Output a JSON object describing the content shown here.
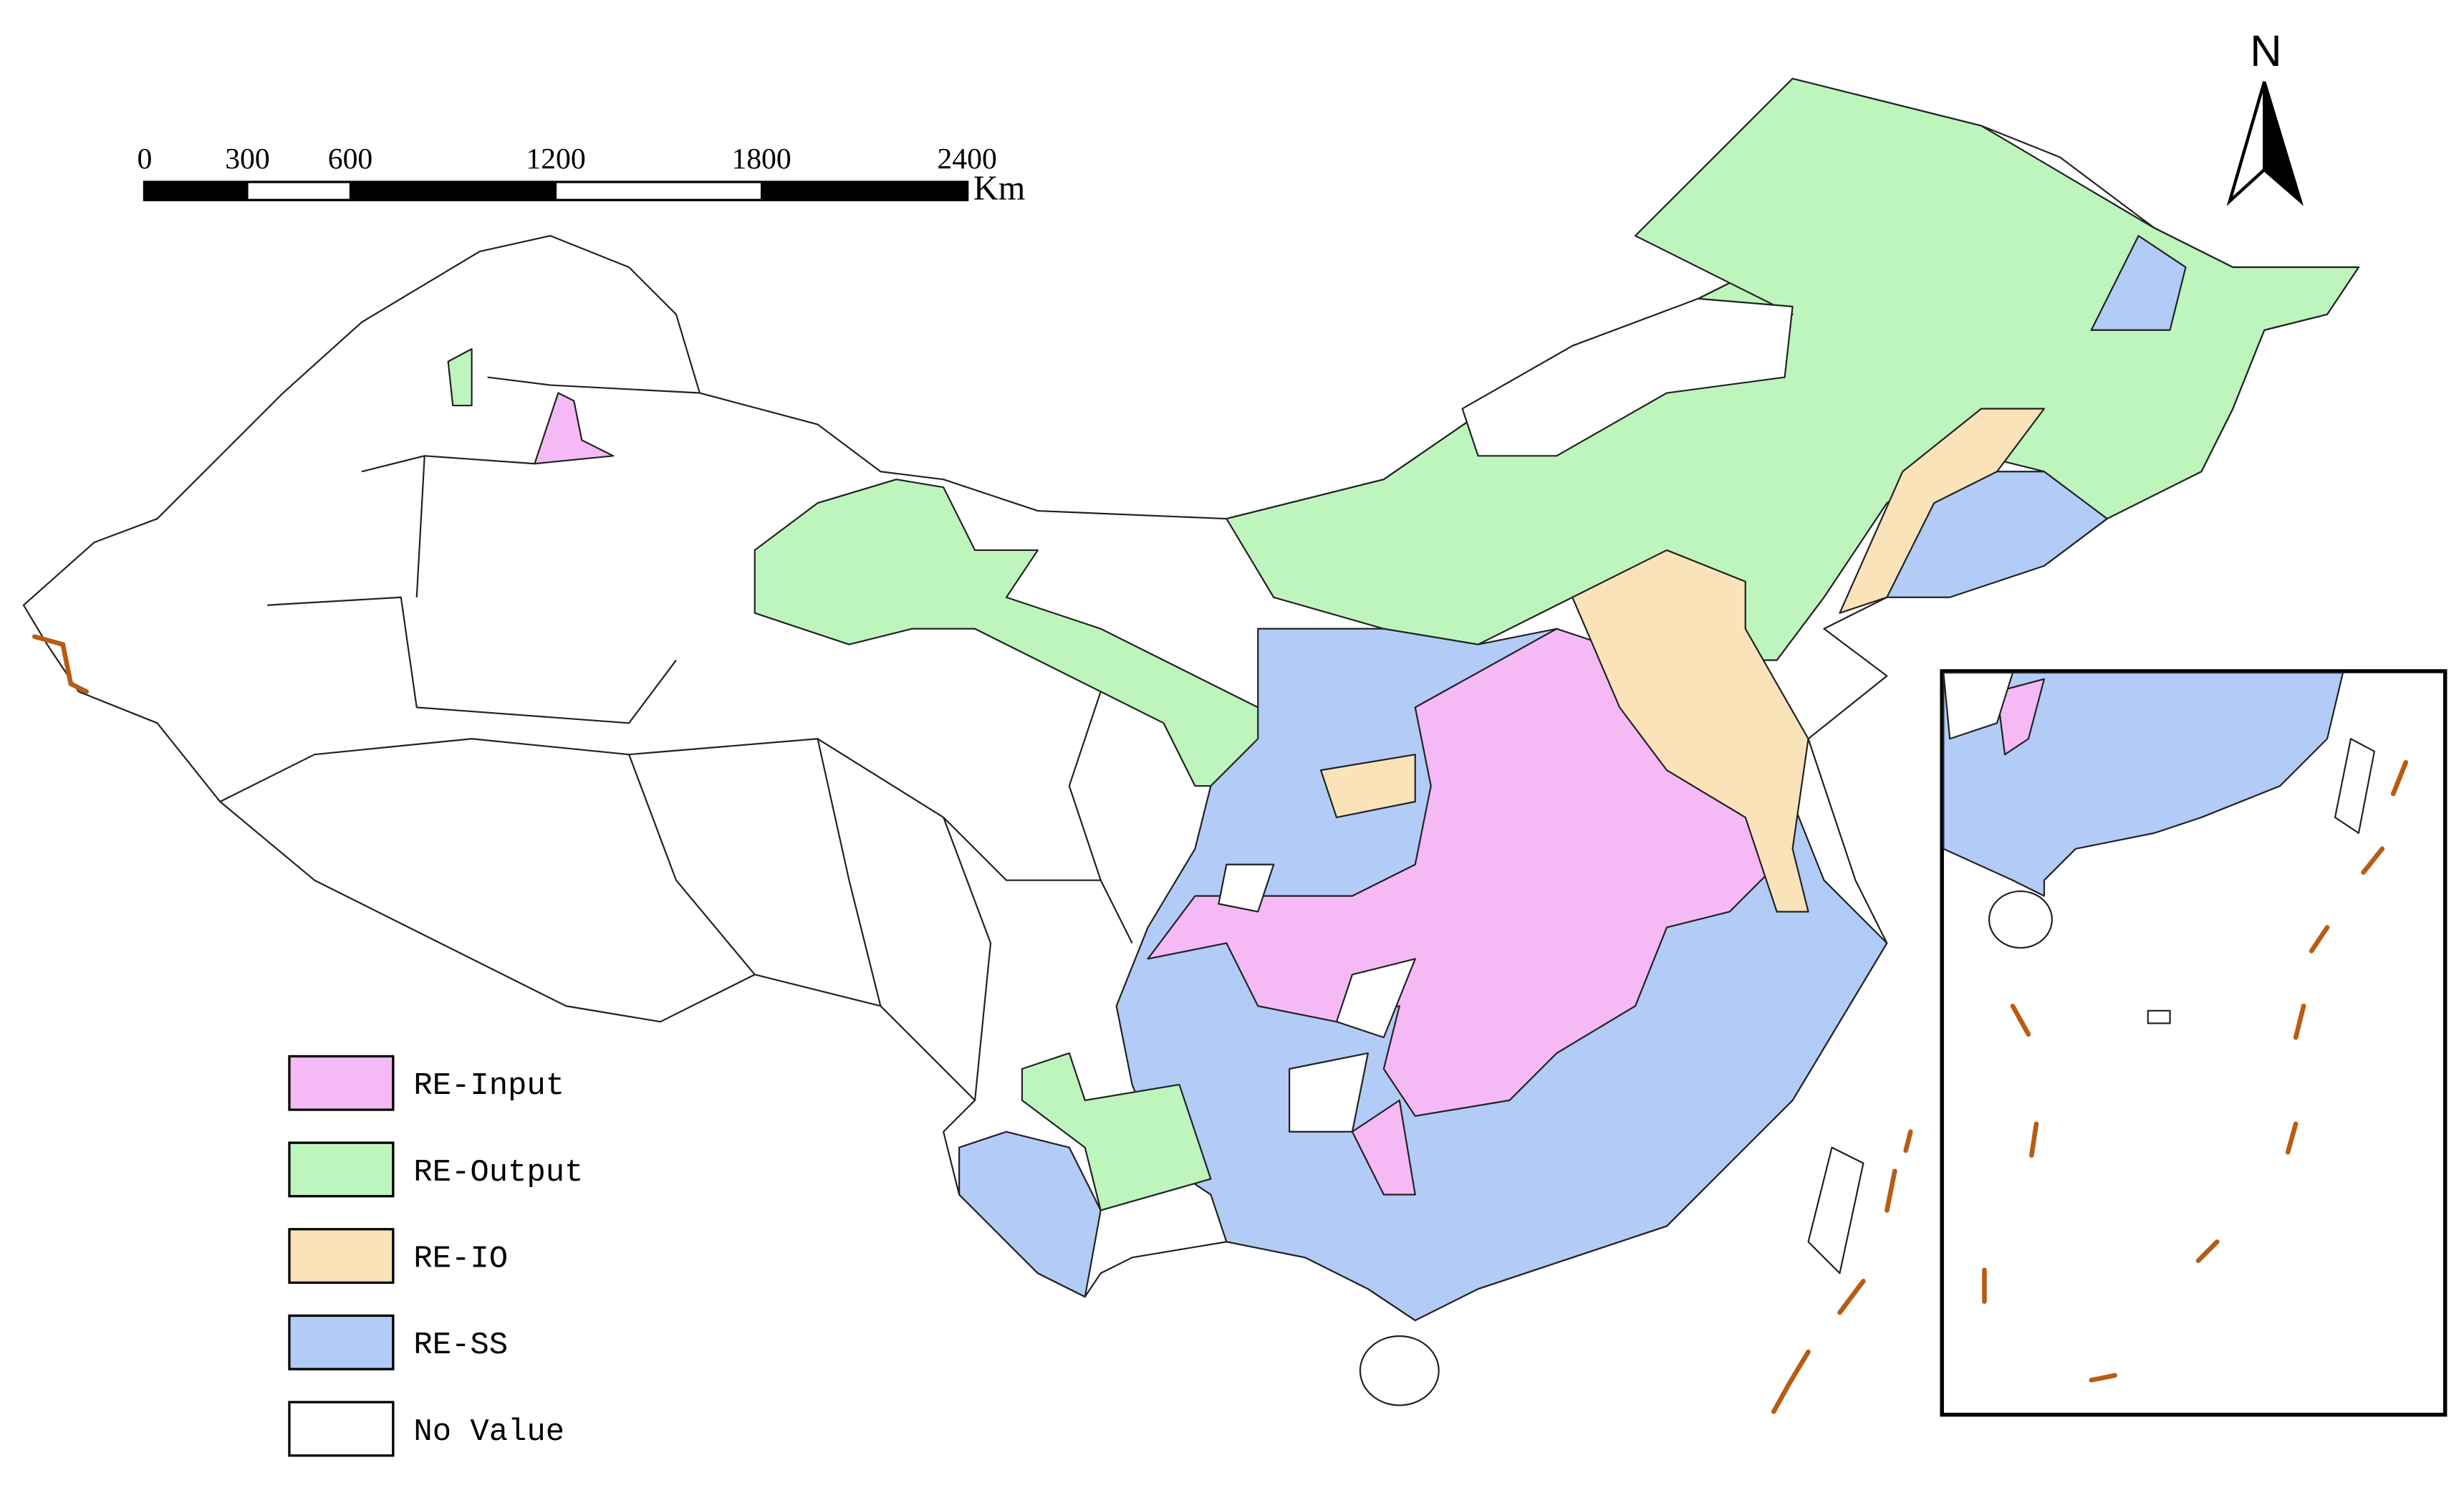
{
  "scale_bar": {
    "ticks": [
      0,
      300,
      600,
      1200,
      1800,
      2400
    ],
    "unit": "Km"
  },
  "north_arrow": "N",
  "legend": [
    {
      "label": "RE-Input",
      "color": "#f5b9f5"
    },
    {
      "label": "RE-Output",
      "color": "#bdf5bd"
    },
    {
      "label": "RE-IO",
      "color": "#fae3b9"
    },
    {
      "label": "RE-SS",
      "color": "#b3cbf7"
    },
    {
      "label": "No Value",
      "color": "#ffffff"
    }
  ]
}
